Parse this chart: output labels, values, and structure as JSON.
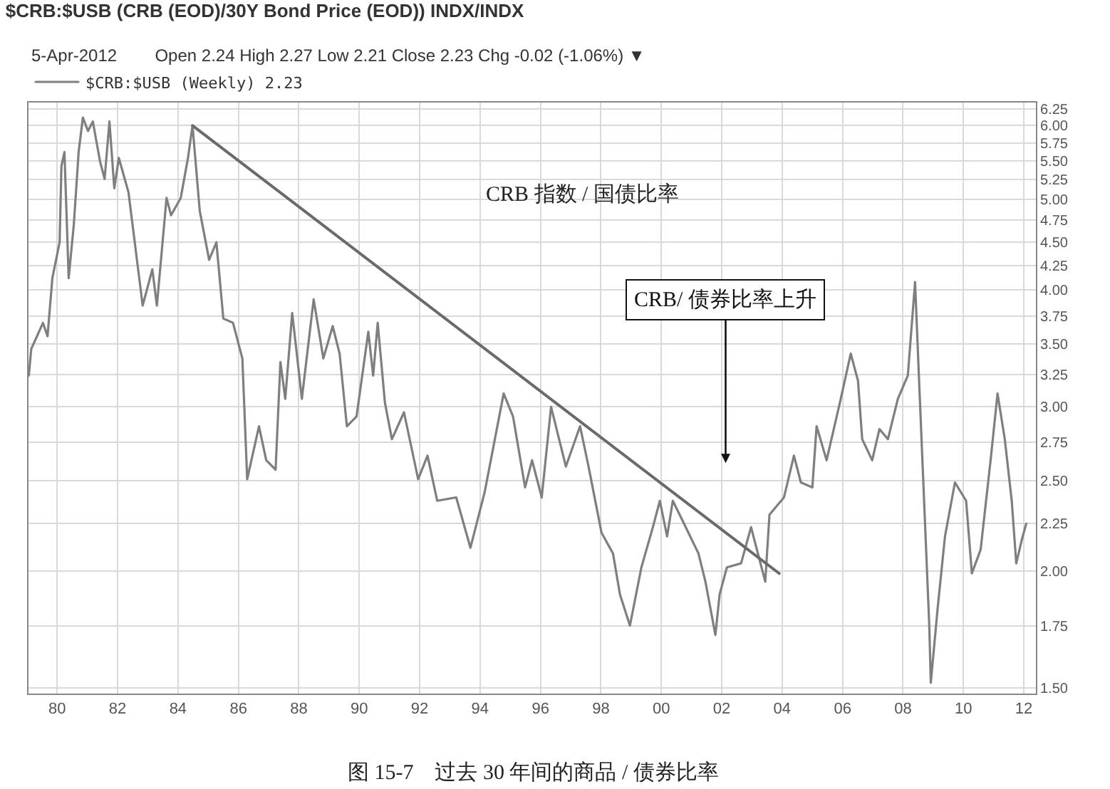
{
  "chart_data": {
    "type": "line",
    "title": "$CRB:$USB (CRB (EOD)/30Y Bond Price (EOD)) INDX/INDX",
    "subtitle": "5-Apr-2012        Open 2.24 High 2.27 Low 2.21 Close 2.23 Chg -0.02 (-1.06%) ▼",
    "annotations": [
      "CRB 指数 / 国债比率",
      "CRB/ 债券比率上升",
      "图 15-7    过去 30 年间的商品 / 债券比率"
    ],
    "series": [
      {
        "name": "$CRB:$USB (Weekly) 2.23",
        "color": "#7f7f7f",
        "x": [
          1979.06,
          1979.14,
          1979.53,
          1979.68,
          1979.84,
          1980.08,
          1980.14,
          1980.24,
          1980.38,
          1980.55,
          1980.71,
          1980.85,
          1981.02,
          1981.18,
          1981.42,
          1981.57,
          1981.73,
          1981.89,
          1982.04,
          1982.36,
          1982.83,
          1983.15,
          1983.3,
          1983.62,
          1983.77,
          1984.09,
          1984.33,
          1984.48,
          1984.72,
          1985.03,
          1985.27,
          1985.5,
          1985.82,
          1986.13,
          1986.29,
          1986.68,
          1986.92,
          1987.23,
          1987.39,
          1987.55,
          1987.78,
          1988.1,
          1988.49,
          1988.81,
          1989.12,
          1989.35,
          1989.59,
          1989.91,
          1990.3,
          1990.46,
          1990.61,
          1990.85,
          1991.08,
          1991.48,
          1991.95,
          1992.26,
          1992.58,
          1993.21,
          1993.68,
          1994.15,
          1994.78,
          1995.09,
          1995.49,
          1995.72,
          1996.04,
          1996.35,
          1996.84,
          1997.31,
          1997.59,
          1998.02,
          1998.4,
          1998.63,
          1998.96,
          1999.34,
          1999.72,
          1999.95,
          2000.19,
          2000.38,
          2000.75,
          2001.23,
          2001.46,
          2001.79,
          2001.93,
          2002.17,
          2002.64,
          2002.97,
          2003.44,
          2003.58,
          2004.06,
          2004.39,
          2004.62,
          2005.0,
          2005.14,
          2005.47,
          2005.94,
          2006.27,
          2006.51,
          2006.65,
          2006.98,
          2007.22,
          2007.5,
          2007.83,
          2008.16,
          2008.4,
          2008.54,
          2008.68,
          2008.87,
          2008.92,
          2009.15,
          2009.39,
          2009.72,
          2010.09,
          2010.28,
          2010.57,
          2010.9,
          2011.13,
          2011.37,
          2011.6,
          2011.75,
          2011.93,
          2012.08
        ],
        "values": [
          3.24,
          3.46,
          3.69,
          3.57,
          4.12,
          4.5,
          5.43,
          5.62,
          4.12,
          4.7,
          5.62,
          6.12,
          5.92,
          6.06,
          5.49,
          5.26,
          6.06,
          5.14,
          5.54,
          5.09,
          3.85,
          4.21,
          3.85,
          5.02,
          4.81,
          5.02,
          5.54,
          6.0,
          4.86,
          4.31,
          4.5,
          3.73,
          3.69,
          3.38,
          2.51,
          2.86,
          2.63,
          2.57,
          3.35,
          3.06,
          3.78,
          3.06,
          3.91,
          3.38,
          3.66,
          3.42,
          2.86,
          2.93,
          3.61,
          3.24,
          3.69,
          3.03,
          2.77,
          2.96,
          2.51,
          2.66,
          2.38,
          2.4,
          2.12,
          2.43,
          3.1,
          2.93,
          2.46,
          2.63,
          2.4,
          3.0,
          2.59,
          2.86,
          2.59,
          2.2,
          2.09,
          1.89,
          1.75,
          2.02,
          2.23,
          2.38,
          2.18,
          2.38,
          2.25,
          2.09,
          1.95,
          1.71,
          1.89,
          2.02,
          2.04,
          2.23,
          1.95,
          2.3,
          2.4,
          2.66,
          2.49,
          2.46,
          2.86,
          2.63,
          3.06,
          3.42,
          3.2,
          2.77,
          2.63,
          2.84,
          2.77,
          3.06,
          3.24,
          4.08,
          3.16,
          2.46,
          1.75,
          1.52,
          1.83,
          2.18,
          2.49,
          2.38,
          1.99,
          2.11,
          2.63,
          3.1,
          2.77,
          2.38,
          2.04,
          2.16,
          2.25
        ]
      },
      {
        "type": "line",
        "color": "#6a6a6a",
        "x": [
          1984.48,
          2003.9
        ],
        "values": [
          6.0,
          1.99
        ]
      }
    ],
    "log": true,
    "xlim": [
      1979.05,
      2012.4
    ],
    "xticks": [
      {
        "value": 1980,
        "label": "80"
      },
      {
        "value": 1982,
        "label": "82"
      },
      {
        "value": 1984,
        "label": "84"
      },
      {
        "value": 1986,
        "label": "86"
      },
      {
        "value": 1988,
        "label": "88"
      },
      {
        "value": 1990,
        "label": "90"
      },
      {
        "value": 1992,
        "label": "92"
      },
      {
        "value": 1994,
        "label": "94"
      },
      {
        "value": 1996,
        "label": "96"
      },
      {
        "value": 1998,
        "label": "98"
      },
      {
        "value": 2000,
        "label": "00"
      },
      {
        "value": 2002,
        "label": "02"
      },
      {
        "value": 2004,
        "label": "04"
      },
      {
        "value": 2006,
        "label": "06"
      },
      {
        "value": 2008,
        "label": "08"
      },
      {
        "value": 2010,
        "label": "10"
      },
      {
        "value": 2012,
        "label": "12"
      }
    ],
    "ylim": [
      1.48,
      6.35
    ],
    "yticks": [
      {
        "value": 1.5,
        "label": "1.50"
      },
      1.75,
      {
        "value": 2.0,
        "label": "2.00"
      },
      2.25,
      {
        "value": 2.5,
        "label": "2.50"
      },
      2.75,
      {
        "value": 3.0,
        "label": "3.00"
      },
      3.25,
      {
        "value": 3.5,
        "label": "3.50"
      },
      3.75,
      {
        "value": 4.0,
        "label": "4.00"
      },
      4.25,
      {
        "value": 4.5,
        "label": "4.50"
      },
      4.75,
      {
        "value": 5.0,
        "label": "5.00"
      },
      5.25,
      {
        "value": 5.5,
        "label": "5.50"
      },
      5.75,
      {
        "value": 6.0,
        "label": "6.00"
      },
      6.25
    ],
    "grid": true,
    "legend": "top left"
  }
}
